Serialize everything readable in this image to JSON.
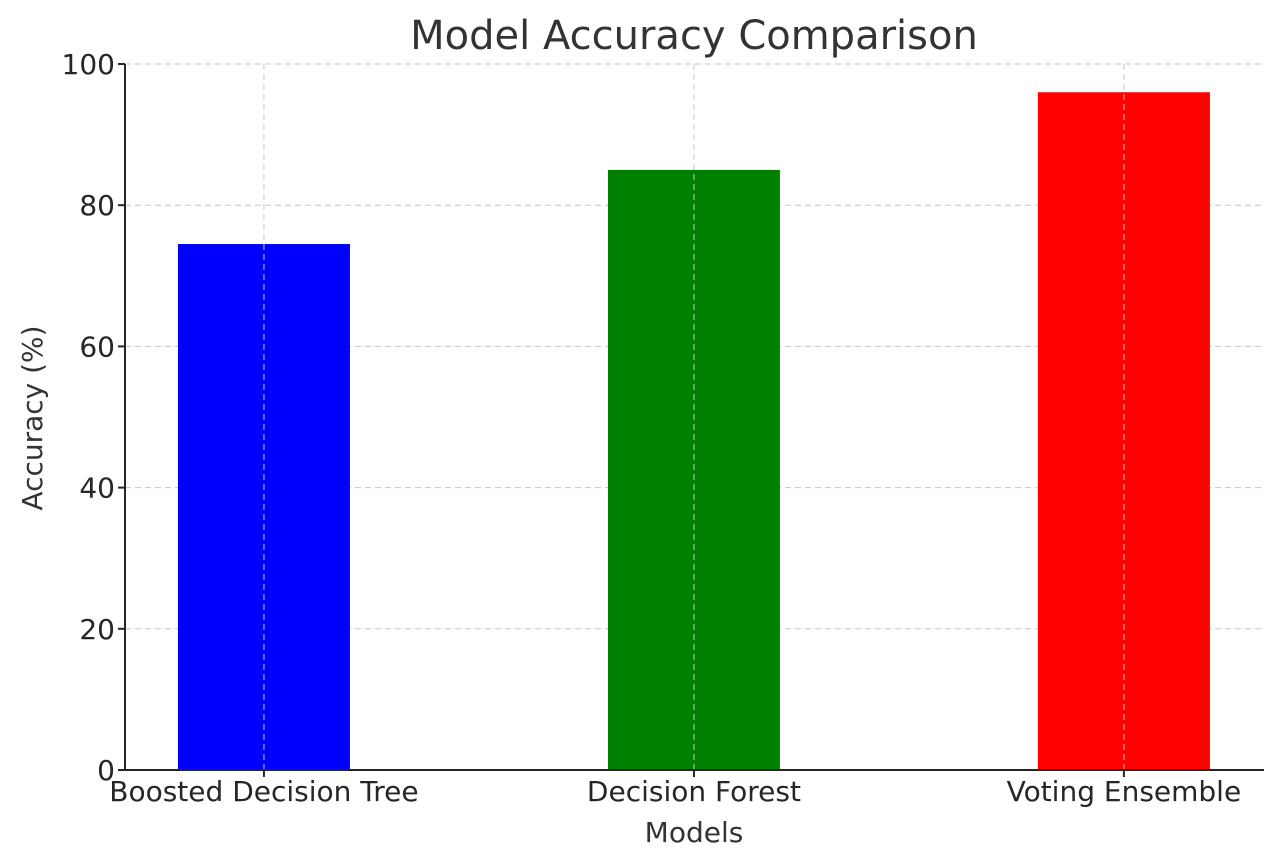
{
  "chart_data": {
    "type": "bar",
    "title": "Model Accuracy Comparison",
    "xlabel": "Models",
    "ylabel": "Accuracy (%)",
    "categories": [
      "Boosted Decision Tree",
      "Decision Forest",
      "Voting Ensemble"
    ],
    "values": [
      74.5,
      85,
      96
    ],
    "colors": [
      "#0000ff",
      "#008000",
      "#ff0000"
    ],
    "ylim": [
      0,
      100
    ],
    "yticks": [
      0,
      20,
      40,
      60,
      80,
      100
    ],
    "grid": true
  }
}
